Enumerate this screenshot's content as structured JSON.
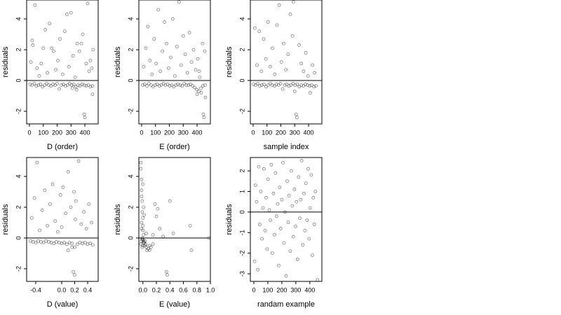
{
  "chart_data": [
    {
      "type": "scatter",
      "x_label": "D (order)",
      "y_label": "residuals",
      "color": "#000000",
      "hline": 0,
      "xlim": [
        -20,
        496
      ],
      "ylim": [
        -2.82,
        5.23
      ],
      "xticks": [
        0,
        100,
        200,
        300,
        400
      ],
      "yticks": [
        -2,
        0,
        2,
        4
      ],
      "x": [
        5,
        20,
        35,
        50,
        65,
        80,
        95,
        110,
        125,
        140,
        155,
        170,
        185,
        200,
        215,
        230,
        245,
        260,
        275,
        290,
        305,
        320,
        335,
        350,
        365,
        380,
        395,
        410,
        425,
        440,
        455,
        10,
        20,
        25,
        40,
        55,
        70,
        85,
        100,
        115,
        130,
        145,
        160,
        175,
        190,
        205,
        220,
        240,
        255,
        270,
        285,
        300,
        315,
        330,
        345,
        360,
        375,
        385,
        395,
        400,
        410,
        420,
        430,
        440,
        450,
        455,
        460,
        340,
        310
      ],
      "y": [
        -0.25,
        -0.3,
        -0.2,
        -0.35,
        -0.3,
        -0.25,
        -0.4,
        -0.3,
        -0.2,
        -0.3,
        -0.35,
        -0.25,
        -0.3,
        -0.2,
        -0.55,
        -0.3,
        -0.25,
        -0.35,
        -0.3,
        -0.2,
        -0.3,
        -0.25,
        -0.4,
        -0.3,
        -0.35,
        -0.25,
        -0.3,
        -0.35,
        -0.3,
        -0.4,
        -0.35,
        1.2,
        2.6,
        2.3,
        4.9,
        0.8,
        0.3,
        1.1,
        2.1,
        3.3,
        0.5,
        3.7,
        2.1,
        1.9,
        0.7,
        1.3,
        2.7,
        0.4,
        3.2,
        4.3,
        0.9,
        4.4,
        1.6,
        0.2,
        2.4,
        1.9,
        2.4,
        3.0,
        -2.2,
        -2.4,
        1.1,
        5.0,
        0.6,
        1.3,
        0.8,
        -0.9,
        2.0,
        -0.6,
        -0.5
      ]
    },
    {
      "type": "scatter",
      "x_label": "E (order)",
      "y_label": "residuals",
      "color": "#000000",
      "hline": 0,
      "xlim": [
        -20,
        496
      ],
      "ylim": [
        -2.82,
        5.23
      ],
      "xticks": [
        0,
        100,
        200,
        300,
        400
      ],
      "yticks": [
        -2,
        0,
        2,
        4
      ],
      "x": [
        8,
        22,
        38,
        52,
        68,
        82,
        98,
        112,
        128,
        142,
        158,
        172,
        188,
        202,
        218,
        232,
        248,
        262,
        278,
        292,
        308,
        322,
        338,
        352,
        368,
        382,
        398,
        412,
        428,
        442,
        458,
        15,
        30,
        45,
        60,
        75,
        90,
        105,
        120,
        135,
        150,
        165,
        180,
        195,
        210,
        225,
        240,
        255,
        270,
        285,
        300,
        315,
        330,
        345,
        360,
        375,
        390,
        405,
        420,
        430,
        440,
        445,
        450,
        455,
        460,
        400,
        415
      ],
      "y": [
        -0.3,
        -0.25,
        -0.35,
        -0.2,
        -0.3,
        -0.4,
        -0.3,
        -0.25,
        -0.35,
        -0.3,
        -0.2,
        -0.3,
        -0.25,
        -0.35,
        -0.3,
        -0.4,
        -0.3,
        -0.25,
        -0.3,
        -0.35,
        -0.2,
        -0.3,
        -0.3,
        -0.25,
        -0.35,
        -0.45,
        -0.6,
        -0.7,
        -0.5,
        -0.35,
        -0.3,
        0.9,
        2.1,
        3.5,
        1.3,
        0.4,
        2.7,
        1.1,
        4.6,
        0.6,
        1.9,
        3.8,
        2.4,
        0.8,
        1.5,
        4.0,
        0.3,
        2.2,
        5.1,
        1.0,
        2.9,
        1.7,
        0.5,
        3.1,
        1.2,
        2.0,
        0.7,
        1.4,
        0.2,
        -0.8,
        2.4,
        -2.2,
        -2.4,
        1.9,
        -1.1,
        -0.9,
        0.6
      ]
    },
    {
      "type": "scatter",
      "x_label": "sample index",
      "y_label": "residuals",
      "color": "#000000",
      "hline": 0,
      "xlim": [
        -20,
        496
      ],
      "ylim": [
        -2.82,
        5.23
      ],
      "xticks": [
        0,
        100,
        200,
        300,
        400
      ],
      "yticks": [
        -2,
        0,
        2,
        4
      ],
      "x": [
        3,
        18,
        33,
        48,
        63,
        78,
        93,
        108,
        123,
        138,
        153,
        168,
        183,
        198,
        213,
        228,
        243,
        258,
        273,
        288,
        303,
        318,
        333,
        348,
        363,
        378,
        393,
        408,
        423,
        438,
        453,
        12,
        28,
        44,
        60,
        76,
        92,
        108,
        124,
        140,
        156,
        172,
        188,
        204,
        220,
        236,
        252,
        268,
        284,
        300,
        310,
        316,
        332,
        348,
        364,
        380,
        396,
        412,
        428,
        444,
        290
      ],
      "y": [
        -0.25,
        -0.3,
        -0.2,
        -0.35,
        -0.3,
        -0.25,
        -0.4,
        -0.3,
        -0.2,
        -0.3,
        -0.35,
        -0.25,
        -0.3,
        -0.2,
        -0.55,
        -0.3,
        -0.25,
        -0.35,
        -0.3,
        -0.2,
        -0.3,
        -0.25,
        -0.4,
        -0.3,
        -0.35,
        -0.25,
        -0.3,
        -0.35,
        -0.3,
        -0.4,
        -0.35,
        3.4,
        1.0,
        3.2,
        0.6,
        2.7,
        1.4,
        3.8,
        0.9,
        2.1,
        0.4,
        3.6,
        4.9,
        1.2,
        2.4,
        0.7,
        1.7,
        4.3,
        2.9,
        -0.7,
        -2.2,
        -2.4,
        2.3,
        1.1,
        0.6,
        1.8,
        0.3,
        -0.8,
        1.0,
        0.5,
        5.1
      ]
    },
    {
      "type": "scatter",
      "x_label": "D (value)",
      "y_label": "residuals",
      "color": "#000000",
      "hline": 0,
      "xlim": [
        -0.54,
        0.562
      ],
      "ylim": [
        -2.82,
        5.23
      ],
      "xticks": [
        -0.4,
        {
          "value": 0,
          "label": "0.0"
        },
        0.2,
        0.4
      ],
      "yticks": [
        -2,
        0,
        2,
        4
      ],
      "x": [
        -0.48,
        -0.44,
        -0.4,
        -0.36,
        -0.32,
        -0.28,
        -0.24,
        -0.2,
        -0.16,
        -0.12,
        -0.08,
        -0.04,
        0.0,
        0.04,
        0.08,
        0.12,
        0.16,
        0.2,
        0.24,
        0.28,
        0.32,
        0.36,
        0.4,
        0.44,
        0.48,
        -0.46,
        -0.42,
        -0.38,
        -0.34,
        -0.3,
        -0.26,
        -0.22,
        -0.18,
        -0.14,
        -0.1,
        -0.06,
        -0.02,
        0.02,
        0.06,
        0.1,
        0.14,
        0.18,
        0.2,
        0.22,
        0.26,
        0.3,
        0.34,
        0.38,
        0.42,
        0.46,
        0.1,
        0.16,
        0.19,
        0.21,
        0.0
      ],
      "y": [
        -0.2,
        -0.25,
        -0.3,
        -0.2,
        -0.25,
        -0.3,
        -0.2,
        -0.25,
        -0.3,
        -0.35,
        -0.25,
        -0.3,
        -0.35,
        -0.3,
        -0.4,
        -0.3,
        -0.35,
        -0.6,
        -0.4,
        -0.3,
        -0.35,
        -0.3,
        -0.4,
        -0.35,
        -0.45,
        1.3,
        2.6,
        4.9,
        0.5,
        1.8,
        3.1,
        0.8,
        2.2,
        3.5,
        1.1,
        0.4,
        2.8,
        3.3,
        1.6,
        4.3,
        2.0,
        -2.2,
        -2.4,
        2.4,
        5.0,
        0.9,
        1.7,
        0.6,
        2.2,
        1.0,
        -0.8,
        -0.6,
        3.0,
        1.2,
        0.7
      ]
    },
    {
      "type": "scatter",
      "x_label": "E (value)",
      "y_label": "residuals",
      "color": "#000000",
      "hline": 0,
      "xlim": [
        -0.06,
        1.0
      ],
      "ylim": [
        -2.82,
        5.23
      ],
      "xticks": [
        {
          "value": 0,
          "label": "0.0"
        },
        0.2,
        0.4,
        0.6,
        0.8,
        {
          "value": 1,
          "label": "1.0"
        }
      ],
      "yticks": [
        -2,
        0,
        2,
        4
      ],
      "x": [
        -0.03,
        -0.02,
        -0.01,
        0.0,
        0.01,
        -0.03,
        -0.02,
        -0.01,
        0.0,
        0.01,
        -0.03,
        -0.02,
        -0.01,
        0.0,
        0.01,
        -0.02,
        -0.01,
        0.0,
        -0.02,
        0.0,
        -0.01,
        0.02,
        0.03,
        0.04,
        0.05,
        0.06,
        0.08,
        0.1,
        0.12,
        0.15,
        0.18,
        0.2,
        0.22,
        0.25,
        0.3,
        0.35,
        0.36,
        0.4,
        0.45,
        0.7,
        0.72,
        0.02,
        0.01,
        -0.02,
        0.0,
        0.03,
        0.1,
        0.15,
        0.05,
        0.98
      ],
      "y": [
        4.9,
        3.8,
        2.4,
        1.3,
        0.2,
        -0.4,
        -0.2,
        -0.6,
        0.8,
        2.0,
        4.5,
        3.1,
        1.7,
        0.5,
        -0.3,
        1.0,
        -0.1,
        -0.5,
        2.7,
        3.5,
        0.0,
        -0.3,
        -0.5,
        -0.4,
        -0.6,
        -0.8,
        -0.7,
        -0.5,
        -0.6,
        0.2,
        2.2,
        1.4,
        1.9,
        0.6,
        0.1,
        -2.2,
        -2.4,
        2.4,
        0.3,
        0.8,
        -0.8,
        1.5,
        -0.2,
        0.6,
        -0.1,
        -0.2,
        -0.8,
        -0.4,
        0.3,
        0.0
      ]
    },
    {
      "type": "scatter",
      "x_label": "randam example",
      "y_label": "residuals",
      "color": "#000000",
      "hline": 0,
      "xlim": [
        -25,
        486
      ],
      "ylim": [
        -3.37,
        2.65
      ],
      "xticks": [
        0,
        100,
        200,
        300,
        400
      ],
      "yticks": [
        -3,
        -2,
        -1,
        0,
        1,
        2
      ],
      "x": [
        5,
        12,
        20,
        28,
        35,
        42,
        50,
        58,
        65,
        72,
        80,
        88,
        95,
        102,
        110,
        118,
        125,
        132,
        140,
        148,
        155,
        162,
        170,
        178,
        185,
        192,
        200,
        208,
        215,
        222,
        230,
        238,
        245,
        252,
        260,
        268,
        275,
        282,
        290,
        298,
        305,
        312,
        320,
        328,
        335,
        342,
        350,
        358,
        365,
        372,
        380,
        388,
        395,
        402,
        410,
        418,
        425,
        432,
        440,
        455
      ],
      "y": [
        -2.4,
        1.3,
        0.5,
        -2.8,
        2.2,
        -0.6,
        1.0,
        -1.3,
        0.2,
        2.1,
        -0.9,
        0.7,
        -1.8,
        1.6,
        0.1,
        -0.4,
        2.3,
        -2.0,
        0.9,
        -1.1,
        1.9,
        -0.2,
        0.4,
        -2.6,
        1.2,
        -0.8,
        0.6,
        2.4,
        -1.5,
        0.0,
        -3.1,
        1.5,
        -0.5,
        0.8,
        -1.9,
        2.0,
        0.3,
        -1.2,
        1.1,
        -0.7,
        0.5,
        -2.3,
        1.7,
        -0.3,
        0.6,
        2.5,
        -1.6,
        0.9,
        -0.9,
        1.4,
        -0.4,
        2.1,
        -1.3,
        0.2,
        1.8,
        -2.1,
        0.7,
        -0.6,
        1.0,
        -3.3
      ]
    }
  ]
}
